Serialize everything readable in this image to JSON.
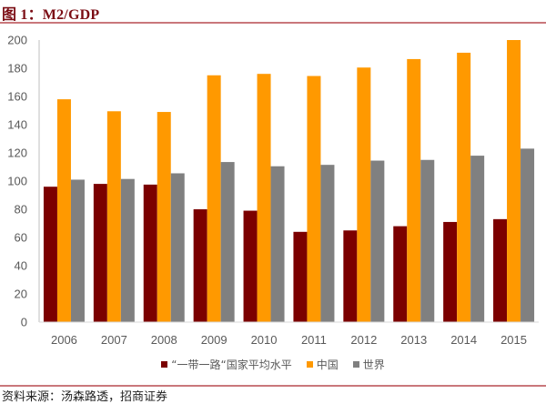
{
  "figure": {
    "title": "图 1：M2/GDP",
    "source": "资料来源：汤森路透，招商证券"
  },
  "chart_data": {
    "type": "bar",
    "title": "图 1：M2/GDP",
    "xlabel": "",
    "ylabel": "",
    "categories": [
      "2006",
      "2007",
      "2008",
      "2009",
      "2010",
      "2011",
      "2012",
      "2013",
      "2014",
      "2015"
    ],
    "series": [
      {
        "name": "“一带一路“国家平均水平",
        "color": "#7b0000",
        "values": [
          96,
          98,
          97.5,
          80,
          79,
          64,
          65,
          68,
          71,
          73
        ]
      },
      {
        "name": "中国",
        "color": "#ff9900",
        "values": [
          158,
          149.5,
          149,
          175,
          176,
          174.5,
          180.5,
          186.5,
          191,
          200
        ]
      },
      {
        "name": "世界",
        "color": "#808080",
        "values": [
          101,
          101.5,
          105.5,
          113.5,
          110.5,
          111.5,
          114.5,
          115,
          118,
          123
        ]
      }
    ],
    "ylim": [
      0,
      200
    ],
    "yticks": [
      "0",
      "20",
      "40",
      "60",
      "80",
      "100",
      "120",
      "140",
      "160",
      "180",
      "200"
    ],
    "grid": false,
    "legend_position": "bottom-center"
  }
}
